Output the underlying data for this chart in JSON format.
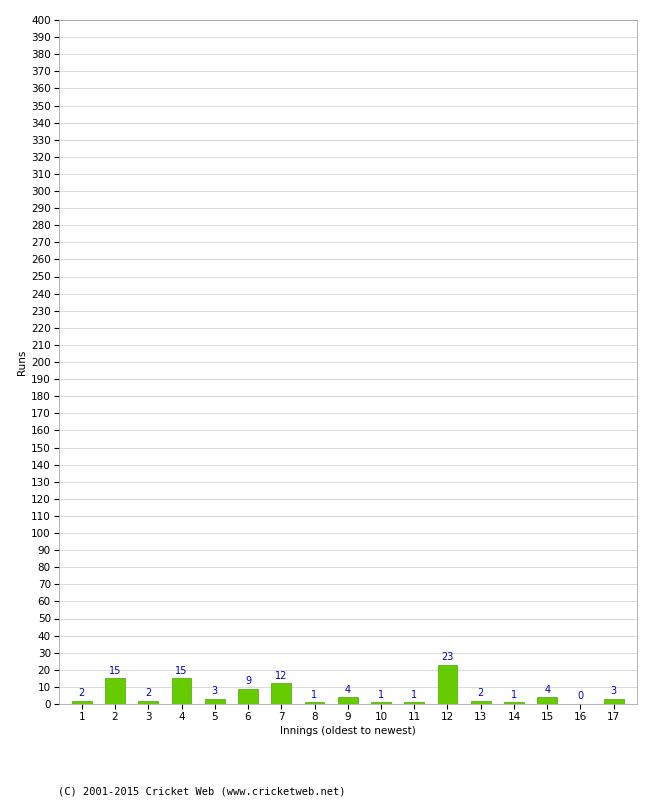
{
  "innings": [
    1,
    2,
    3,
    4,
    5,
    6,
    7,
    8,
    9,
    10,
    11,
    12,
    13,
    14,
    15,
    16,
    17
  ],
  "runs": [
    2,
    15,
    2,
    15,
    3,
    9,
    12,
    1,
    4,
    1,
    1,
    23,
    2,
    1,
    4,
    0,
    3
  ],
  "bar_color": "#66cc00",
  "bar_edge_color": "#44aa00",
  "label_color": "#0000cc",
  "xlabel": "Innings (oldest to newest)",
  "ylabel": "Runs",
  "ylim": [
    0,
    400
  ],
  "ytick_step": 10,
  "background_color": "#ffffff",
  "grid_color": "#cccccc",
  "footer": "(C) 2001-2015 Cricket Web (www.cricketweb.net)",
  "label_fontsize": 7,
  "axis_fontsize": 7.5,
  "ylabel_fontsize": 7.5,
  "footer_fontsize": 7.5
}
